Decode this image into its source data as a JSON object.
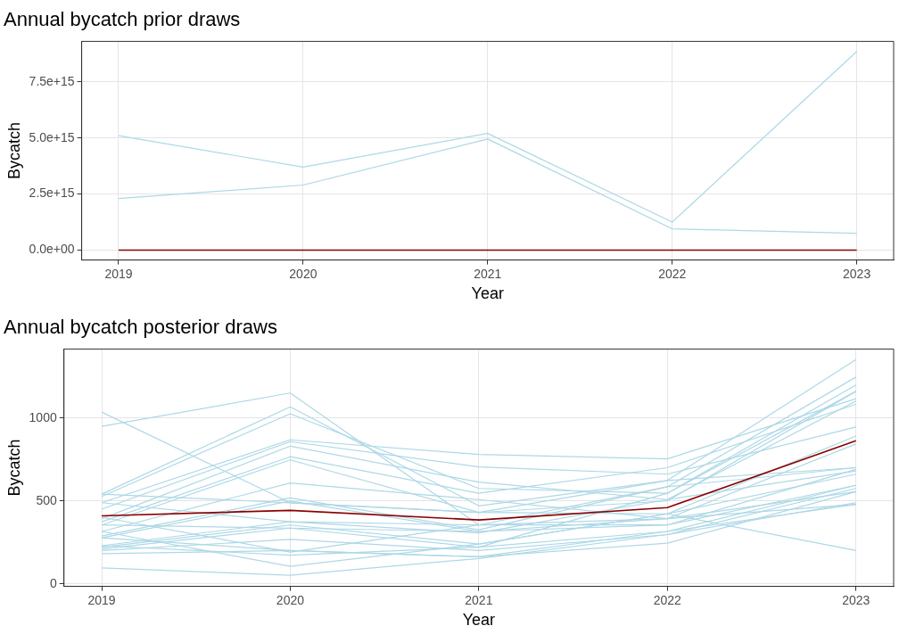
{
  "chart_data": [
    {
      "type": "line",
      "title": "Annual bycatch prior draws",
      "xlabel": "Year",
      "ylabel": "Bycatch",
      "x": [
        2019,
        2020,
        2021,
        2022,
        2023
      ],
      "xlim": [
        2018.8,
        2023.2
      ],
      "xticks": [
        2019,
        2020,
        2021,
        2022,
        2023
      ],
      "ylim": [
        -440000000000000.0,
        9300000000000000.0
      ],
      "yticks": [
        {
          "value": 0,
          "label": "0.0e+00"
        },
        {
          "value": 2500000000000000.0,
          "label": "2.5e+15"
        },
        {
          "value": 5000000000000000.0,
          "label": "5.0e+15"
        },
        {
          "value": 7500000000000000.0,
          "label": "7.5e+15"
        }
      ],
      "grid": true,
      "legend": false,
      "marker": "none",
      "series": [
        {
          "color": "#add8e6",
          "values": [
            5100000000000000.0,
            3700000000000000.0,
            5200000000000000.0,
            1250000000000000.0,
            8850000000000000.0
          ]
        },
        {
          "color": "#add8e6",
          "values": [
            2300000000000000.0,
            2900000000000000.0,
            4950000000000000.0,
            950000000000000.0,
            750000000000000.0
          ]
        },
        {
          "color": "#8b0000",
          "values": [
            0,
            0,
            0,
            0,
            0
          ]
        }
      ]
    },
    {
      "type": "line",
      "title": "Annual bycatch posterior draws",
      "xlabel": "Year",
      "ylabel": "Bycatch",
      "x": [
        2019,
        2020,
        2021,
        2022,
        2023
      ],
      "xlim": [
        2018.8,
        2023.2
      ],
      "xticks": [
        2019,
        2020,
        2021,
        2022,
        2023
      ],
      "ylim": [
        -15,
        1415
      ],
      "yticks": [
        0,
        500,
        1000
      ],
      "grid": true,
      "legend": false,
      "marker": "none",
      "series": [
        {
          "color": "#add8e6",
          "values": [
            1035,
            489,
            430,
            500,
            1160
          ]
        },
        {
          "color": "#add8e6",
          "values": [
            949,
            1150,
            355,
            585,
            1246
          ]
        },
        {
          "color": "#add8e6",
          "values": [
            541,
            1067,
            470,
            623,
            1351
          ]
        },
        {
          "color": "#add8e6",
          "values": [
            527,
            1025,
            575,
            546,
            1198
          ]
        },
        {
          "color": "#add8e6",
          "values": [
            489,
            868,
            780,
            753,
            1116
          ]
        },
        {
          "color": "#add8e6",
          "values": [
            450,
            857,
            705,
            661,
            945
          ]
        },
        {
          "color": "#add8e6",
          "values": [
            393,
            830,
            613,
            508,
            1102
          ]
        },
        {
          "color": "#add8e6",
          "values": [
            374,
            766,
            546,
            700,
            1083
          ]
        },
        {
          "color": "#add8e6",
          "values": [
            355,
            747,
            431,
            422,
            891
          ]
        },
        {
          "color": "#add8e6",
          "values": [
            316,
            608,
            508,
            393,
            843
          ]
        },
        {
          "color": "#add8e6",
          "values": [
            288,
            518,
            326,
            585,
            700
          ]
        },
        {
          "color": "#add8e6",
          "values": [
            278,
            499,
            316,
            355,
            690
          ]
        },
        {
          "color": "#add8e6",
          "values": [
            230,
            374,
            307,
            508,
            681
          ]
        },
        {
          "color": "#add8e6",
          "values": [
            221,
            355,
            240,
            422,
            661
          ]
        },
        {
          "color": "#add8e6",
          "values": [
            211,
            336,
            221,
            316,
            594
          ]
        },
        {
          "color": "#add8e6",
          "values": [
            201,
            268,
            201,
            297,
            575
          ]
        },
        {
          "color": "#add8e6",
          "values": [
            182,
            201,
            163,
            245,
            556
          ]
        },
        {
          "color": "#add8e6",
          "values": [
            96,
            52,
            153,
            297,
            489
          ]
        },
        {
          "color": "#add8e6",
          "values": [
            402,
            192,
            355,
            393,
            479
          ]
        },
        {
          "color": "#add8e6",
          "values": [
            230,
            173,
            221,
            546,
            1160
          ]
        },
        {
          "color": "#add8e6",
          "values": [
            316,
            106,
            240,
            422,
            201
          ]
        },
        {
          "color": "#add8e6",
          "values": [
            489,
            374,
            355,
            355,
            594
          ]
        },
        {
          "color": "#add8e6",
          "values": [
            541,
            489,
            431,
            623,
            700
          ]
        },
        {
          "color": "#add8e6",
          "values": [
            355,
            336,
            316,
            393,
            556
          ]
        },
        {
          "color": "#add8e6",
          "values": [
            278,
            201,
            163,
            316,
            479
          ]
        },
        {
          "color": "#8b0000",
          "values": [
            410,
            443,
            385,
            460,
            862
          ]
        }
      ]
    }
  ]
}
